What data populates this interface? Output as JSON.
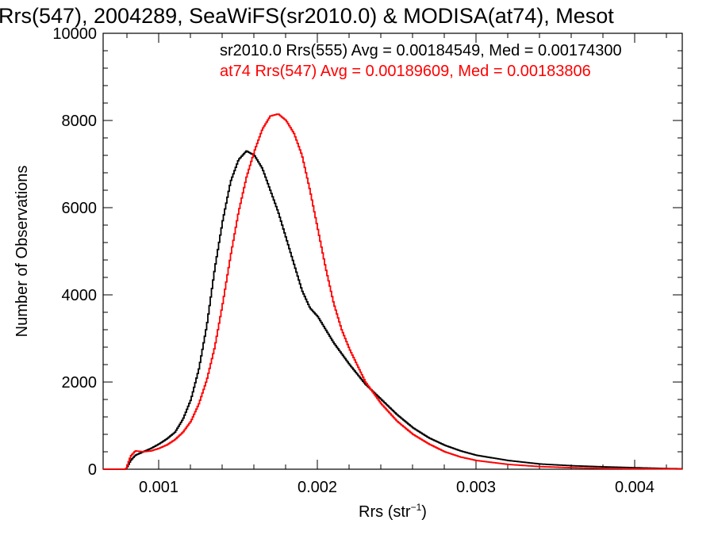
{
  "chart_data": {
    "type": "line",
    "title": "Rrs(547), 2004289, SeaWiFS(sr2010.0) & MODISA(at74), Mesot",
    "xlabel": "Rrs (str",
    "xlabel_sup": "−1",
    "xlabel_end": ")",
    "ylabel": "Number of Observations",
    "xlim": [
      0.00065,
      0.0043
    ],
    "ylim": [
      0,
      10000
    ],
    "x_ticks": [
      0.001,
      0.002,
      0.003,
      0.004
    ],
    "x_tick_labels": [
      "0.001",
      "0.002",
      "0.003",
      "0.004"
    ],
    "y_ticks": [
      0,
      2000,
      4000,
      6000,
      8000,
      10000
    ],
    "y_tick_labels": [
      "0",
      "2000",
      "4000",
      "6000",
      "8000",
      "10000"
    ],
    "grid": false,
    "legend_position": "top-right",
    "legend": [
      {
        "text": "sr2010.0 Rrs(555) Avg = 0.00184549, Med = 0.00174300",
        "color": "#000000"
      },
      {
        "text": "at74 Rrs(547) Avg = 0.00189609, Med = 0.00183806",
        "color": "#ff0000"
      }
    ],
    "series": [
      {
        "color": "#000000",
        "x": [
          0.00065,
          0.00079,
          0.0008,
          0.00082,
          0.00085,
          0.0009,
          0.00095,
          0.001,
          0.00105,
          0.0011,
          0.00115,
          0.0012,
          0.00125,
          0.0013,
          0.00135,
          0.0014,
          0.00145,
          0.0015,
          0.00155,
          0.0016,
          0.00165,
          0.0017,
          0.00175,
          0.0018,
          0.00185,
          0.0019,
          0.00195,
          0.002,
          0.00205,
          0.0021,
          0.00215,
          0.0022,
          0.0023,
          0.0024,
          0.0025,
          0.0026,
          0.0027,
          0.0028,
          0.0029,
          0.003,
          0.0032,
          0.0034,
          0.0036,
          0.0038,
          0.004,
          0.0042,
          0.0043
        ],
        "y": [
          0,
          0,
          60,
          200,
          320,
          400,
          480,
          580,
          700,
          850,
          1150,
          1600,
          2300,
          3300,
          4600,
          5700,
          6600,
          7100,
          7300,
          7200,
          6900,
          6400,
          5900,
          5300,
          4700,
          4100,
          3700,
          3500,
          3200,
          2900,
          2650,
          2400,
          1950,
          1600,
          1250,
          950,
          720,
          550,
          420,
          320,
          200,
          120,
          80,
          55,
          35,
          15,
          10
        ]
      },
      {
        "color": "#ff0000",
        "x": [
          0.00065,
          0.00079,
          0.0008,
          0.00082,
          0.00085,
          0.0009,
          0.00095,
          0.001,
          0.00105,
          0.0011,
          0.00115,
          0.0012,
          0.00125,
          0.0013,
          0.00135,
          0.0014,
          0.00145,
          0.0015,
          0.00155,
          0.0016,
          0.00165,
          0.0017,
          0.00175,
          0.0018,
          0.00185,
          0.0019,
          0.00195,
          0.002,
          0.00205,
          0.0021,
          0.00215,
          0.0022,
          0.0023,
          0.0024,
          0.0025,
          0.0026,
          0.0027,
          0.0028,
          0.0029,
          0.003,
          0.0032,
          0.0034,
          0.0036,
          0.0038,
          0.004,
          0.0042,
          0.0043
        ],
        "y": [
          0,
          0,
          100,
          300,
          420,
          400,
          420,
          480,
          560,
          680,
          850,
          1100,
          1500,
          2050,
          2800,
          3800,
          4900,
          5900,
          6700,
          7300,
          7800,
          8100,
          8150,
          8000,
          7700,
          7200,
          6400,
          5500,
          4600,
          3800,
          3200,
          2750,
          2000,
          1500,
          1100,
          800,
          580,
          400,
          280,
          200,
          110,
          60,
          35,
          20,
          12,
          8,
          5
        ]
      }
    ]
  }
}
